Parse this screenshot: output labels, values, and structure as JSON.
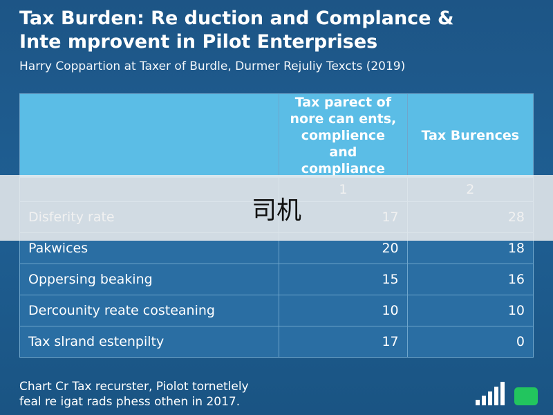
{
  "title": [
    "Tax Burden: Re duction and Complance &",
    "Inte mprovent in Pilot Enterprises"
  ],
  "subtitle": "Harry Coppartion at Taxer of Burdle, Durmer Rejuliy Texcts (2019)",
  "table": {
    "header": [
      [
        "Tax parect of",
        "nore can ents,",
        "complience and",
        "compliance"
      ],
      [
        "Tax Burences"
      ]
    ],
    "index": [
      "1",
      "2"
    ],
    "rows": [
      [
        "Disferity rate",
        17,
        28
      ],
      [
        "Pakwices",
        20,
        18
      ],
      [
        "Oppersing beaking",
        15,
        16
      ],
      [
        "Dercounity reate costeaning",
        10,
        10
      ],
      [
        "Tax slrand estenpilty",
        17,
        0
      ]
    ]
  },
  "overlay": "司机",
  "footer": [
    "Chart Cr Tax recurster, Piolot tornetlely",
    "feal re igat rads phess othen in 2017."
  ]
}
